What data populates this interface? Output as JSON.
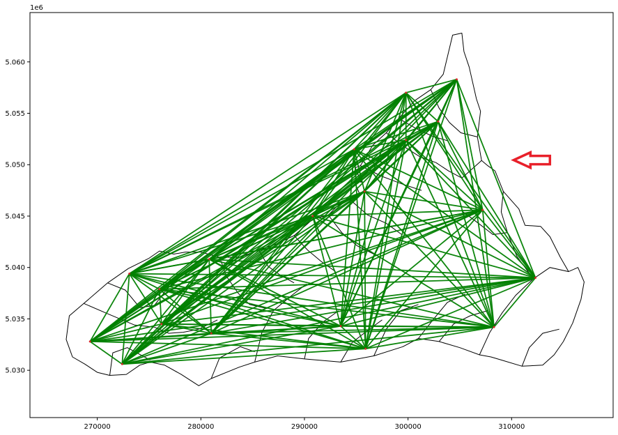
{
  "chart_data": {
    "type": "line",
    "title": "",
    "xlabel": "",
    "ylabel": "",
    "y_offset_label": "1e6",
    "xlim": [
      263500,
      319800
    ],
    "ylim": [
      5025400,
      5064800
    ],
    "x_ticks": [
      270000,
      280000,
      290000,
      300000,
      310000
    ],
    "x_tick_labels": [
      "270000",
      "280000",
      "290000",
      "300000",
      "310000"
    ],
    "y_ticks": [
      5030000,
      5035000,
      5040000,
      5045000,
      5050000,
      5055000,
      5060000
    ],
    "y_tick_labels": [
      "5.030",
      "5.035",
      "5.040",
      "5.045",
      "5.050",
      "5.055",
      "5.060"
    ],
    "grid": false,
    "line_color": "#008000",
    "node_color": "#d62728",
    "boundary_color": "#000000",
    "annotation_color": "#e8202a",
    "annotation": {
      "type": "arrow",
      "direction": "left",
      "x": 310200,
      "y": 5050450
    },
    "boundary_outline": [
      [
        267300,
        5035300
      ],
      [
        268700,
        5036500
      ],
      [
        271000,
        5038500
      ],
      [
        273000,
        5039900
      ],
      [
        275000,
        5040900
      ],
      [
        276000,
        5041600
      ],
      [
        277400,
        5041300
      ],
      [
        278500,
        5041500
      ],
      [
        280000,
        5041500
      ],
      [
        281800,
        5041000
      ],
      [
        283800,
        5041000
      ],
      [
        285600,
        5041700
      ],
      [
        287300,
        5042300
      ],
      [
        289000,
        5043100
      ],
      [
        290800,
        5044700
      ],
      [
        292300,
        5045100
      ],
      [
        293300,
        5046100
      ],
      [
        294400,
        5046600
      ],
      [
        295300,
        5047200
      ],
      [
        294800,
        5048400
      ],
      [
        295500,
        5048300
      ],
      [
        294900,
        5049700
      ],
      [
        295400,
        5049900
      ],
      [
        296600,
        5051900
      ],
      [
        297900,
        5053100
      ],
      [
        299100,
        5054500
      ],
      [
        300600,
        5056200
      ],
      [
        302200,
        5057300
      ],
      [
        303400,
        5058800
      ],
      [
        304300,
        5062600
      ],
      [
        305200,
        5062800
      ],
      [
        305400,
        5061000
      ],
      [
        305900,
        5059500
      ],
      [
        306600,
        5056400
      ],
      [
        307000,
        5055200
      ],
      [
        306700,
        5052700
      ],
      [
        307100,
        5050400
      ],
      [
        307700,
        5049900
      ],
      [
        308400,
        5049400
      ],
      [
        309200,
        5047400
      ],
      [
        310700,
        5045700
      ],
      [
        311300,
        5044100
      ],
      [
        312800,
        5044000
      ],
      [
        313700,
        5043000
      ],
      [
        314700,
        5041000
      ],
      [
        315500,
        5039600
      ],
      [
        316400,
        5040000
      ],
      [
        317000,
        5038600
      ],
      [
        316700,
        5036900
      ],
      [
        315900,
        5034600
      ],
      [
        315000,
        5032800
      ],
      [
        314100,
        5031500
      ],
      [
        313000,
        5030500
      ],
      [
        311000,
        5030400
      ],
      [
        309000,
        5031000
      ],
      [
        308000,
        5031300
      ],
      [
        306900,
        5031500
      ],
      [
        305000,
        5032200
      ],
      [
        303000,
        5032800
      ],
      [
        301000,
        5033100
      ],
      [
        299500,
        5032300
      ],
      [
        296700,
        5031400
      ],
      [
        293500,
        5030800
      ],
      [
        290000,
        5031100
      ],
      [
        287400,
        5031400
      ],
      [
        285200,
        5030800
      ],
      [
        283700,
        5030300
      ],
      [
        281000,
        5029200
      ],
      [
        279800,
        5028500
      ],
      [
        278100,
        5029600
      ],
      [
        276500,
        5030500
      ],
      [
        275100,
        5030800
      ],
      [
        274100,
        5030500
      ],
      [
        272800,
        5029600
      ],
      [
        271200,
        5029500
      ],
      [
        270000,
        5029800
      ],
      [
        268800,
        5030600
      ],
      [
        267600,
        5031300
      ],
      [
        267000,
        5033000
      ],
      [
        267300,
        5035300
      ]
    ],
    "boundary_internal": [
      [
        [
          268700,
          5036500
        ],
        [
          271000,
          5035500
        ],
        [
          273600,
          5034400
        ],
        [
          275500,
          5034200
        ]
      ],
      [
        [
          271000,
          5038500
        ],
        [
          272700,
          5037800
        ],
        [
          274100,
          5036100
        ],
        [
          275500,
          5036300
        ],
        [
          276800,
          5038000
        ],
        [
          278000,
          5039100
        ]
      ],
      [
        [
          275500,
          5034200
        ],
        [
          276900,
          5033600
        ],
        [
          278300,
          5033700
        ],
        [
          279800,
          5034000
        ],
        [
          281600,
          5034900
        ]
      ],
      [
        [
          271200,
          5029500
        ],
        [
          271500,
          5031700
        ],
        [
          272900,
          5032200
        ],
        [
          275100,
          5031000
        ]
      ],
      [
        [
          281000,
          5029200
        ],
        [
          281800,
          5031200
        ],
        [
          283800,
          5032300
        ],
        [
          285200,
          5031800
        ]
      ],
      [
        [
          285200,
          5030800
        ],
        [
          285900,
          5033700
        ],
        [
          287000,
          5035800
        ],
        [
          288800,
          5037300
        ],
        [
          290200,
          5038400
        ]
      ],
      [
        [
          290000,
          5031100
        ],
        [
          290400,
          5033100
        ],
        [
          291800,
          5034700
        ],
        [
          293300,
          5035800
        ]
      ],
      [
        [
          293500,
          5030800
        ],
        [
          294600,
          5032700
        ],
        [
          296000,
          5033800
        ],
        [
          297500,
          5034900
        ]
      ],
      [
        [
          296700,
          5031400
        ],
        [
          297900,
          5034000
        ],
        [
          299300,
          5035800
        ],
        [
          301000,
          5036400
        ]
      ],
      [
        [
          281800,
          5041000
        ],
        [
          282500,
          5039100
        ],
        [
          283600,
          5037500
        ],
        [
          284700,
          5036400
        ],
        [
          286400,
          5036000
        ]
      ],
      [
        [
          285600,
          5041700
        ],
        [
          286500,
          5040100
        ],
        [
          287600,
          5039300
        ],
        [
          289000,
          5038500
        ]
      ],
      [
        [
          289000,
          5043100
        ],
        [
          290300,
          5041700
        ],
        [
          291600,
          5040600
        ],
        [
          293000,
          5039600
        ]
      ],
      [
        [
          292300,
          5045100
        ],
        [
          293600,
          5043400
        ],
        [
          295100,
          5042100
        ],
        [
          296700,
          5041300
        ]
      ],
      [
        [
          294400,
          5046600
        ],
        [
          296100,
          5045100
        ],
        [
          297900,
          5044300
        ],
        [
          299400,
          5043200
        ]
      ],
      [
        [
          295400,
          5049900
        ],
        [
          297400,
          5048900
        ],
        [
          299500,
          5048100
        ],
        [
          301300,
          5047500
        ]
      ],
      [
        [
          297900,
          5053100
        ],
        [
          299400,
          5051900
        ],
        [
          301100,
          5050800
        ],
        [
          302700,
          5050200
        ]
      ],
      [
        [
          299100,
          5054500
        ],
        [
          300800,
          5053500
        ],
        [
          302300,
          5052800
        ],
        [
          303900,
          5052300
        ]
      ],
      [
        [
          302200,
          5057300
        ],
        [
          303000,
          5055500
        ],
        [
          304000,
          5054100
        ],
        [
          305100,
          5053100
        ],
        [
          306700,
          5052700
        ]
      ],
      [
        [
          301000,
          5033100
        ],
        [
          302400,
          5034900
        ],
        [
          303800,
          5036600
        ],
        [
          305500,
          5037400
        ]
      ],
      [
        [
          303000,
          5032800
        ],
        [
          304400,
          5034500
        ],
        [
          306000,
          5035300
        ],
        [
          307700,
          5035800
        ]
      ],
      [
        [
          306900,
          5031500
        ],
        [
          307900,
          5033700
        ],
        [
          309100,
          5035600
        ],
        [
          310400,
          5037300
        ],
        [
          312100,
          5038900
        ]
      ],
      [
        [
          311000,
          5030400
        ],
        [
          311700,
          5032200
        ],
        [
          313000,
          5033600
        ],
        [
          314600,
          5034000
        ]
      ],
      [
        [
          309200,
          5047400
        ],
        [
          309000,
          5045400
        ],
        [
          309600,
          5043400
        ],
        [
          310500,
          5041100
        ],
        [
          312100,
          5038900
        ]
      ],
      [
        [
          312100,
          5038900
        ],
        [
          313700,
          5040000
        ],
        [
          315500,
          5039600
        ]
      ],
      [
        [
          305200,
          5045500
        ],
        [
          306800,
          5044300
        ],
        [
          308200,
          5043200
        ],
        [
          309600,
          5043400
        ]
      ],
      [
        [
          302700,
          5050200
        ],
        [
          303900,
          5049400
        ],
        [
          305200,
          5048700
        ],
        [
          307100,
          5050400
        ]
      ]
    ],
    "nodes": [
      {
        "x": 269300,
        "y": 5032800
      },
      {
        "x": 272400,
        "y": 5030600
      },
      {
        "x": 273100,
        "y": 5039400
      },
      {
        "x": 276000,
        "y": 5037900
      },
      {
        "x": 276200,
        "y": 5034500
      },
      {
        "x": 280800,
        "y": 5040800
      },
      {
        "x": 281000,
        "y": 5033600
      },
      {
        "x": 290800,
        "y": 5045000
      },
      {
        "x": 293500,
        "y": 5034300
      },
      {
        "x": 294800,
        "y": 5051500
      },
      {
        "x": 295800,
        "y": 5047400
      },
      {
        "x": 295900,
        "y": 5032100
      },
      {
        "x": 299800,
        "y": 5057000
      },
      {
        "x": 299800,
        "y": 5052400
      },
      {
        "x": 302900,
        "y": 5054200
      },
      {
        "x": 304700,
        "y": 5058300
      },
      {
        "x": 307200,
        "y": 5045600
      },
      {
        "x": 308300,
        "y": 5034200
      },
      {
        "x": 312300,
        "y": 5039000
      }
    ]
  }
}
